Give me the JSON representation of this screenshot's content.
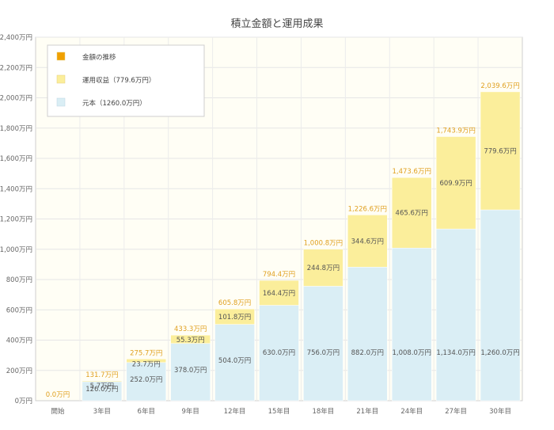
{
  "chart_data": {
    "type": "bar",
    "stacked": true,
    "title": "積立金額と運用成果",
    "categories": [
      "開始",
      "3年目",
      "6年目",
      "9年目",
      "12年目",
      "15年目",
      "18年目",
      "21年目",
      "24年目",
      "27年目",
      "30年目"
    ],
    "series": [
      {
        "name": "元本（1260.0万円）",
        "color": "#daeef5",
        "values": [
          0,
          126.0,
          252.0,
          378.0,
          504.0,
          630.0,
          756.0,
          882.0,
          1008.0,
          1134.0,
          1260.0
        ],
        "labels": [
          "",
          "126.0万円",
          "252.0万円",
          "378.0万円",
          "504.0万円",
          "630.0万円",
          "756.0万円",
          "882.0万円",
          "1,008.0万円",
          "1,134.0万円",
          "1,260.0万円"
        ]
      },
      {
        "name": "運用収益（779.6万円）",
        "color": "#fbee9b",
        "values": [
          0,
          5.7,
          23.7,
          55.3,
          101.8,
          164.4,
          244.8,
          344.6,
          465.6,
          609.9,
          779.6
        ],
        "labels": [
          "",
          "5.7万円",
          "23.7万円",
          "55.3万円",
          "101.8万円",
          "164.4万円",
          "244.8万円",
          "344.6万円",
          "465.6万円",
          "609.9万円",
          "779.6万円"
        ]
      }
    ],
    "totals": {
      "name": "金額の推移",
      "color": "#f0a000",
      "values": [
        0,
        131.7,
        275.7,
        433.3,
        605.8,
        794.4,
        1000.8,
        1226.6,
        1473.6,
        1743.9,
        2039.6
      ],
      "labels": [
        "0.0万円",
        "131.7万円",
        "275.7万円",
        "433.3万円",
        "605.8万円",
        "794.4万円",
        "1,000.8万円",
        "1,226.6万円",
        "1,473.6万円",
        "1,743.9万円",
        "2,039.6万円"
      ]
    },
    "y_ticks": [
      {
        "value": 0,
        "label": "0万円"
      },
      {
        "value": 200,
        "label": "200万円"
      },
      {
        "value": 400,
        "label": "400万円"
      },
      {
        "value": 600,
        "label": "600万円"
      },
      {
        "value": 800,
        "label": "800万円"
      },
      {
        "value": 1000,
        "label": "1,000万円"
      },
      {
        "value": 1200,
        "label": "1,200万円"
      },
      {
        "value": 1400,
        "label": "1,400万円"
      },
      {
        "value": 1600,
        "label": "1,600万円"
      },
      {
        "value": 1800,
        "label": "1,800万円"
      },
      {
        "value": 2000,
        "label": "2,000万円"
      },
      {
        "value": 2200,
        "label": "2,200万円"
      },
      {
        "value": 2400,
        "label": "2,400万円"
      }
    ],
    "ylim": [
      0,
      2400
    ],
    "grid": true,
    "legend_position": "top-left"
  }
}
